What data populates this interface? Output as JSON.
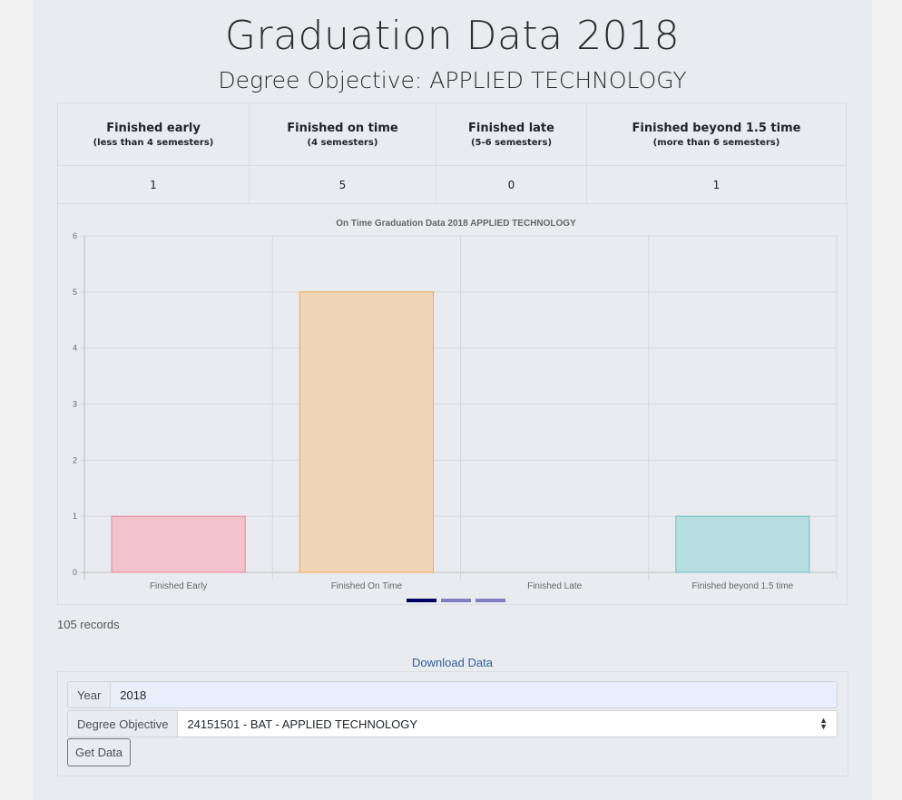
{
  "page": {
    "title": "Graduation Data 2018",
    "subtitle": "Degree Objective: APPLIED TECHNOLOGY",
    "records": "105 records",
    "download_label": "Download Data"
  },
  "summary": {
    "headers": [
      {
        "label": "Finished early",
        "sub": "(less than 4 semesters)"
      },
      {
        "label": "Finished on time",
        "sub": "(4 semesters)"
      },
      {
        "label": "Finished late",
        "sub": "(5-6 semesters)"
      },
      {
        "label": "Finished beyond 1.5 time",
        "sub": "(more than 6 semesters)"
      }
    ],
    "values": [
      "1",
      "5",
      "0",
      "1"
    ]
  },
  "chart_data": {
    "type": "bar",
    "title": "On Time Graduation Data 2018 APPLIED TECHNOLOGY",
    "categories": [
      "Finished Early",
      "Finished On Time",
      "Finished Late",
      "Finished beyond 1.5 time"
    ],
    "values": [
      1,
      5,
      0,
      1
    ],
    "ylim": [
      0,
      6
    ],
    "yticks": [
      "0",
      "1",
      "2",
      "3",
      "4",
      "5",
      "6"
    ],
    "xlabel": "",
    "ylabel": "",
    "grid": true,
    "fill_colors": [
      "#f2c2cd",
      "#f0d6b9",
      "#e8d6a0",
      "#b8dfe0"
    ],
    "border_colors": [
      "#e8839a",
      "#f0a64e",
      "#e0c060",
      "#66c0bf"
    ],
    "pager": {
      "count": 3,
      "active": 0,
      "active_color": "#000066",
      "inactive_color": "#8080c0"
    }
  },
  "form": {
    "year_label": "Year",
    "year_value": "2018",
    "degree_label": "Degree Objective",
    "degree_value": "24151501 - BAT - APPLIED TECHNOLOGY",
    "submit_label": "Get Data"
  }
}
